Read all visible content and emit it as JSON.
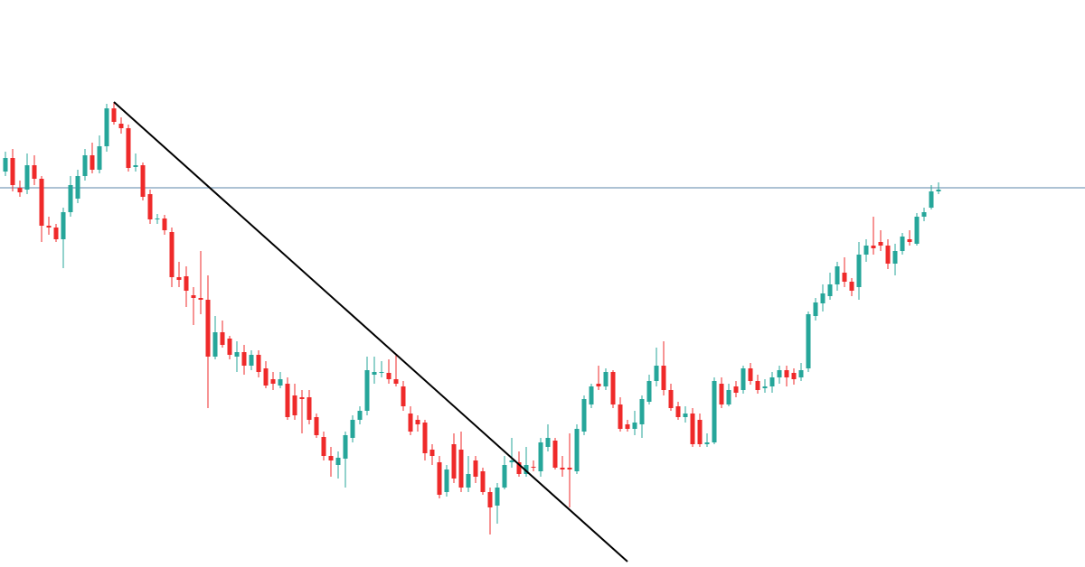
{
  "chart_data": {
    "type": "candlestick",
    "up_color": "#26a69a",
    "down_color": "#ef2a2a",
    "ylim": [
      0,
      628
    ],
    "open": [
      438,
      453,
      420,
      418,
      445,
      430,
      378,
      376,
      363,
      393,
      408,
      433,
      456,
      440,
      466,
      508,
      491,
      486,
      443,
      445,
      413,
      385,
      386,
      371,
      321,
      322,
      301,
      298,
      296,
      233,
      260,
      253,
      233,
      238,
      223,
      235,
      220,
      208,
      201,
      203,
      190,
      188,
      188,
      166,
      144,
      123,
      113,
      120,
      143,
      163,
      173,
      213,
      215,
      215,
      208,
      200,
      170,
      163,
      160,
      130,
      116,
      83,
      136,
      130,
      88,
      118,
      106,
      83,
      68,
      88,
      116,
      116,
      103,
      111,
      106,
      133,
      140,
      110,
      110,
      106,
      150,
      180,
      203,
      200,
      216,
      180,
      158,
      153,
      158,
      183,
      206,
      223,
      196,
      178,
      166,
      170,
      163,
      136,
      138,
      203,
      180,
      200,
      196,
      220,
      206,
      198,
      200,
      210,
      218,
      215,
      210,
      220,
      278,
      292,
      300,
      313,
      326,
      316,
      310,
      346,
      356,
      360,
      356,
      336,
      350,
      363,
      358,
      388,
      398,
      416
    ],
    "high": [
      460,
      463,
      428,
      458,
      456,
      433,
      388,
      380,
      398,
      433,
      440,
      463,
      470,
      478,
      513,
      515,
      498,
      490,
      458,
      448,
      418,
      391,
      390,
      376,
      338,
      333,
      310,
      350,
      323,
      278,
      273,
      256,
      250,
      246,
      240,
      240,
      228,
      216,
      216,
      210,
      203,
      196,
      196,
      170,
      150,
      133,
      128,
      150,
      168,
      178,
      233,
      233,
      228,
      230,
      236,
      206,
      178,
      168,
      163,
      136,
      123,
      113,
      148,
      150,
      123,
      123,
      110,
      88,
      93,
      123,
      143,
      128,
      133,
      118,
      143,
      158,
      143,
      123,
      148,
      158,
      190,
      203,
      223,
      220,
      218,
      188,
      163,
      173,
      190,
      213,
      243,
      250,
      203,
      183,
      178,
      176,
      170,
      148,
      210,
      210,
      203,
      206,
      223,
      226,
      213,
      208,
      216,
      223,
      223,
      220,
      226,
      283,
      298,
      313,
      326,
      338,
      343,
      320,
      360,
      363,
      388,
      373,
      363,
      358,
      370,
      373,
      392,
      398,
      423,
      426
    ],
    "low": [
      433,
      416,
      410,
      413,
      423,
      360,
      368,
      360,
      331,
      388,
      403,
      428,
      436,
      436,
      460,
      490,
      480,
      438,
      438,
      406,
      380,
      380,
      368,
      310,
      310,
      288,
      268,
      280,
      176,
      230,
      243,
      230,
      216,
      213,
      218,
      210,
      198,
      196,
      198,
      163,
      163,
      148,
      158,
      143,
      118,
      100,
      98,
      88,
      138,
      158,
      168,
      203,
      210,
      203,
      200,
      173,
      146,
      150,
      118,
      113,
      76,
      78,
      93,
      83,
      83,
      93,
      80,
      36,
      48,
      86,
      110,
      100,
      100,
      106,
      100,
      128,
      108,
      100,
      66,
      103,
      146,
      176,
      196,
      196,
      176,
      150,
      150,
      146,
      143,
      180,
      200,
      190,
      173,
      163,
      160,
      133,
      133,
      133,
      136,
      176,
      178,
      188,
      192,
      202,
      192,
      193,
      193,
      203,
      200,
      202,
      206,
      216,
      273,
      283,
      296,
      306,
      310,
      300,
      296,
      338,
      346,
      350,
      330,
      323,
      346,
      356,
      356,
      383,
      396,
      413
    ],
    "close": [
      453,
      423,
      415,
      445,
      430,
      378,
      376,
      363,
      393,
      423,
      433,
      456,
      440,
      466,
      508,
      493,
      486,
      442,
      445,
      410,
      385,
      386,
      373,
      321,
      318,
      306,
      298,
      296,
      233,
      260,
      246,
      235,
      238,
      223,
      235,
      216,
      201,
      203,
      208,
      166,
      168,
      186,
      163,
      146,
      123,
      118,
      121,
      146,
      163,
      173,
      218,
      216,
      216,
      208,
      203,
      178,
      150,
      158,
      126,
      123,
      80,
      108,
      98,
      88,
      103,
      100,
      83,
      66,
      88,
      113,
      118,
      103,
      113,
      110,
      138,
      143,
      110,
      108,
      108,
      153,
      186,
      200,
      200,
      216,
      180,
      153,
      153,
      160,
      186,
      206,
      223,
      196,
      176,
      166,
      170,
      136,
      136,
      138,
      206,
      180,
      196,
      193,
      220,
      206,
      196,
      200,
      210,
      218,
      210,
      208,
      218,
      280,
      293,
      303,
      313,
      333,
      316,
      306,
      346,
      356,
      353,
      356,
      336,
      350,
      366,
      360,
      388,
      393,
      416,
      418
    ],
    "hline": 420,
    "hline_color": "#5b86a8",
    "trendline": {
      "x": [
        15,
        86
      ],
      "values": [
        515,
        6
      ],
      "color": "#000000"
    }
  }
}
